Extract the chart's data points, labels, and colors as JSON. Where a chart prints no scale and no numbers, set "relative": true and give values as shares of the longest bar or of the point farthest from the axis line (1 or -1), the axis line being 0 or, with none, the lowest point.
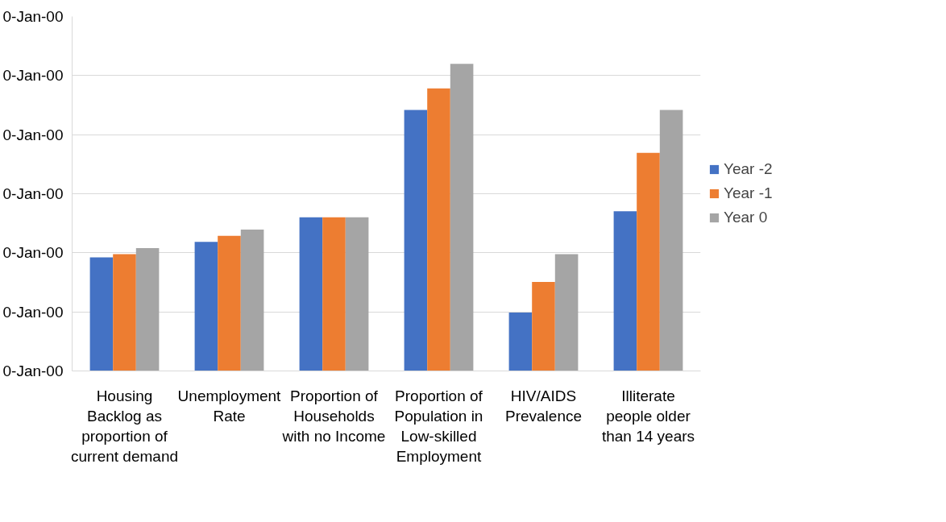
{
  "chart_data": {
    "type": "bar",
    "relative": true,
    "categories": [
      "Housing Backlog as proportion of current demand",
      "Unemployment Rate",
      "Proportion of Households with no Income",
      "Proportion of Population in Low-skilled Employment",
      "HIV/AIDS Prevalence",
      "Illiterate people older than 14 years"
    ],
    "series": [
      {
        "name": "Year -2",
        "color": "#4472c4",
        "values": [
          0.37,
          0.42,
          0.5,
          0.85,
          0.19,
          0.52
        ]
      },
      {
        "name": "Year -1",
        "color": "#ed7d31",
        "values": [
          0.38,
          0.44,
          0.5,
          0.92,
          0.29,
          0.71
        ]
      },
      {
        "name": "Year 0",
        "color": "#a5a5a5",
        "values": [
          0.4,
          0.46,
          0.5,
          1,
          0.38,
          0.85
        ]
      }
    ],
    "annotations": [
      "0-Jan-00",
      "0-Jan-00",
      "0-Jan-00",
      "0-Jan-00",
      "0-Jan-00",
      "0-Jan-00",
      "0-Jan-00"
    ],
    "grid": "y",
    "legend": "right"
  }
}
